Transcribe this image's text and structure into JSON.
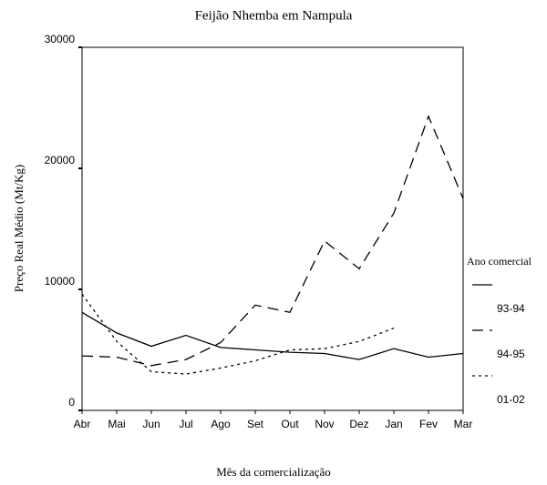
{
  "chart_data": {
    "type": "line",
    "title": "Feijão Nhemba em Nampula",
    "xlabel": "Mês da comercialização",
    "ylabel": "Preço Real Médio (Mt/Kg)",
    "legend_title": "Ano comercial",
    "categories": [
      "Abr",
      "Mai",
      "Jun",
      "Jul",
      "Ago",
      "Set",
      "Out",
      "Nov",
      "Dez",
      "Jan",
      "Fev",
      "Mar"
    ],
    "ylim": [
      0,
      30000
    ],
    "yticks": [
      0,
      10000,
      20000,
      30000
    ],
    "legend": "right",
    "series": [
      {
        "name": "93-94",
        "color": "#000000",
        "dash": "solid",
        "values": [
          8100,
          6400,
          5300,
          6200,
          5200,
          5000,
          4800,
          4700,
          4200,
          5100,
          4400,
          4700
        ]
      },
      {
        "name": "94-95",
        "color": "#000000",
        "dash": "dashed",
        "values": [
          4500,
          4400,
          3700,
          4200,
          5600,
          8700,
          8100,
          14000,
          11700,
          16300,
          24300,
          17500
        ]
      },
      {
        "name": "01-02",
        "color": "#000000",
        "dash": "dotted",
        "values": [
          9600,
          5700,
          3200,
          3000,
          3500,
          4100,
          5000,
          5100,
          5700,
          6800,
          null,
          null
        ]
      }
    ]
  }
}
